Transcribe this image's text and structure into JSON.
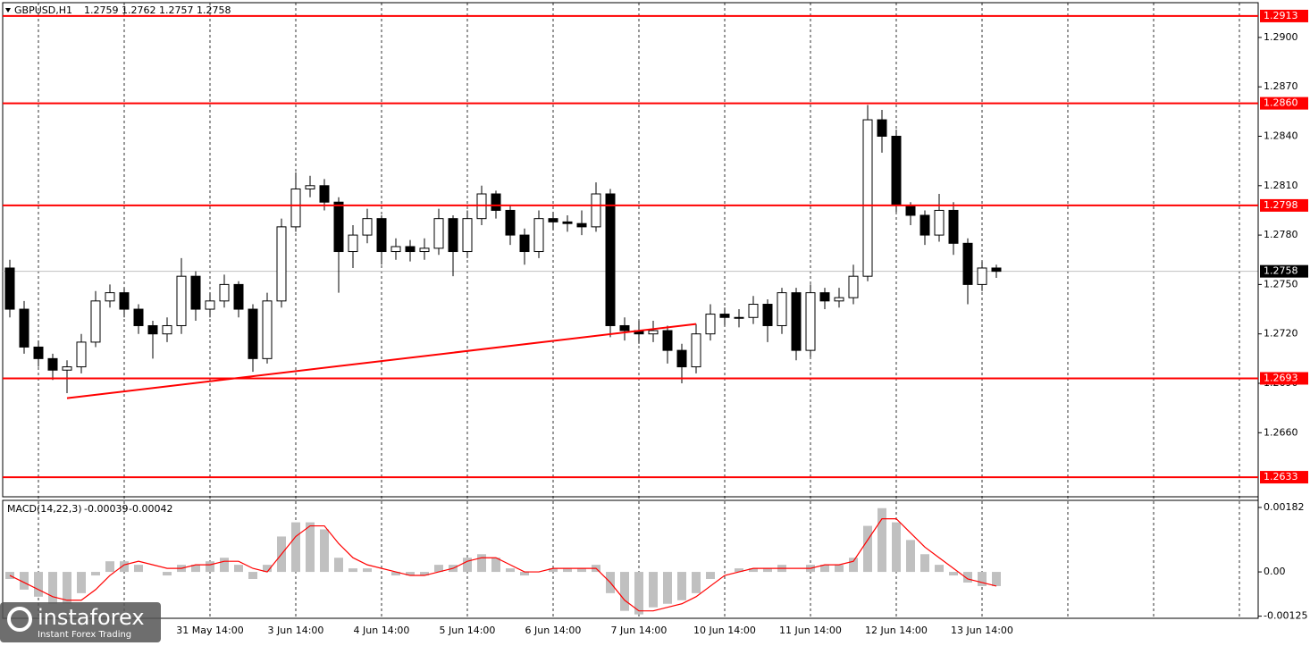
{
  "chart_data": [
    {
      "type": "candlestick",
      "symbol": "GBPUSD,H1",
      "header_values": [
        1.2759,
        1.2762,
        1.2757,
        1.2758
      ],
      "categories": [
        null,
        null,
        null,
        null,
        null,
        null,
        null,
        null,
        null,
        null,
        null,
        null,
        null,
        null,
        "31 May 14:00",
        null,
        null,
        null,
        null,
        null,
        "3 Jun 14:00",
        null,
        null,
        null,
        null,
        null,
        "4 Jun 14:00",
        null,
        null,
        null,
        null,
        null,
        "5 Jun 14:00",
        null,
        null,
        null,
        null,
        null,
        "6 Jun 14:00",
        null,
        null,
        null,
        null,
        null,
        "7 Jun 14:00",
        null,
        null,
        null,
        null,
        null,
        "10 Jun 14:00",
        null,
        null,
        null,
        null,
        null,
        "11 Jun 14:00",
        null,
        null,
        null,
        null,
        null,
        "12 Jun 14:00",
        null,
        null,
        null,
        null,
        null,
        "13 Jun 14:00",
        null
      ],
      "open": [
        1.276,
        1.2735,
        1.2712,
        1.2705,
        1.2698,
        1.27,
        1.2715,
        1.274,
        1.2745,
        1.2735,
        1.2725,
        1.272,
        1.2725,
        1.2755,
        1.2735,
        1.274,
        1.275,
        1.2735,
        1.2705,
        1.274,
        1.2785,
        1.2808,
        1.281,
        1.28,
        1.277,
        1.278,
        1.279,
        1.277,
        1.2773,
        1.277,
        1.2772,
        1.279,
        1.277,
        1.279,
        1.2805,
        1.2795,
        1.278,
        1.277,
        1.279,
        1.2788,
        1.2787,
        1.2785,
        1.2805,
        1.2725,
        1.2722,
        1.272,
        1.2722,
        1.271,
        1.27,
        1.272,
        1.2732,
        1.273,
        1.273,
        1.2738,
        1.2725,
        1.2745,
        1.271,
        1.2745,
        1.274,
        1.2742,
        1.2755,
        1.285,
        1.284,
        1.2798,
        1.2792,
        1.278,
        1.2795,
        1.2775,
        1.275,
        1.276
      ],
      "high": [
        1.2765,
        1.274,
        1.2716,
        1.2708,
        1.2704,
        1.272,
        1.2746,
        1.275,
        1.2748,
        1.2738,
        1.2728,
        1.273,
        1.2766,
        1.2758,
        1.2745,
        1.2756,
        1.2752,
        1.2738,
        1.2745,
        1.279,
        1.2818,
        1.2816,
        1.2814,
        1.2803,
        1.2786,
        1.2796,
        1.2792,
        1.2778,
        1.2777,
        1.2778,
        1.2796,
        1.2792,
        1.2795,
        1.281,
        1.2807,
        1.2798,
        1.2784,
        1.2795,
        1.2794,
        1.2792,
        1.2795,
        1.2812,
        1.2808,
        1.273,
        1.2728,
        1.2728,
        1.2725,
        1.2714,
        1.2726,
        1.2738,
        1.2736,
        1.2735,
        1.2743,
        1.2741,
        1.2748,
        1.2748,
        1.275,
        1.2748,
        1.2748,
        1.2762,
        1.2859,
        1.2856,
        1.2844,
        1.28,
        1.2795,
        1.2805,
        1.28,
        1.2778,
        1.2764,
        1.2762
      ],
      "low": [
        1.273,
        1.2708,
        1.27,
        1.2692,
        1.2684,
        1.2696,
        1.2712,
        1.2736,
        1.273,
        1.272,
        1.2705,
        1.2715,
        1.272,
        1.2728,
        1.273,
        1.2736,
        1.273,
        1.2697,
        1.2702,
        1.2736,
        1.2782,
        1.2803,
        1.2795,
        1.2745,
        1.276,
        1.2775,
        1.2762,
        1.2765,
        1.2764,
        1.2765,
        1.2768,
        1.2755,
        1.2766,
        1.2786,
        1.279,
        1.2774,
        1.2762,
        1.2766,
        1.2783,
        1.2782,
        1.278,
        1.2782,
        1.2718,
        1.2716,
        1.2714,
        1.2715,
        1.2702,
        1.269,
        1.2696,
        1.2716,
        1.2725,
        1.2724,
        1.2726,
        1.2715,
        1.272,
        1.2704,
        1.2706,
        1.2735,
        1.2736,
        1.2738,
        1.2752,
        1.283,
        1.2794,
        1.2786,
        1.2774,
        1.2776,
        1.2768,
        1.2738,
        1.2746,
        1.2754
      ],
      "close": [
        1.2735,
        1.2712,
        1.2705,
        1.2698,
        1.27,
        1.2715,
        1.274,
        1.2745,
        1.2735,
        1.2725,
        1.272,
        1.2725,
        1.2755,
        1.2735,
        1.274,
        1.275,
        1.2735,
        1.2705,
        1.274,
        1.2785,
        1.2808,
        1.281,
        1.28,
        1.277,
        1.278,
        1.279,
        1.277,
        1.2773,
        1.277,
        1.2772,
        1.279,
        1.277,
        1.279,
        1.2805,
        1.2795,
        1.278,
        1.277,
        1.279,
        1.2788,
        1.2787,
        1.2785,
        1.2805,
        1.2725,
        1.2722,
        1.272,
        1.2722,
        1.271,
        1.27,
        1.272,
        1.2732,
        1.273,
        1.273,
        1.2738,
        1.2725,
        1.2745,
        1.271,
        1.2745,
        1.274,
        1.2742,
        1.2755,
        1.285,
        1.284,
        1.2798,
        1.2792,
        1.278,
        1.2795,
        1.2775,
        1.275,
        1.276,
        1.2758
      ],
      "up_color": "#ffffff",
      "down_color": "#000000",
      "ylim": [
        1.26211,
        1.29211
      ],
      "yticks": [
        {
          "value": 1.266,
          "label": "1.2660"
        },
        {
          "value": 1.269,
          "label": "1.2690"
        },
        {
          "value": 1.272,
          "label": "1.2720"
        },
        {
          "value": 1.275,
          "label": "1.2750"
        },
        {
          "value": 1.278,
          "label": "1.2780"
        },
        {
          "value": 1.281,
          "label": "1.2810"
        },
        {
          "value": 1.284,
          "label": "1.2840"
        },
        {
          "value": 1.287,
          "label": "1.2870"
        },
        {
          "value": 1.29,
          "label": "1.2900"
        }
      ],
      "levels": [
        1.2913,
        {
          "value": 1.286,
          "label": "1.2860"
        },
        1.2798,
        1.2693,
        1.2633
      ],
      "level_color": "#ff0000",
      "current_price": 1.2758,
      "trendline": {
        "x": [
          4,
          48
        ],
        "values": [
          1.2681,
          1.2726
        ]
      },
      "grid": true
    },
    {
      "type": "macd",
      "label": "MACD(14,22,3)",
      "header_values": [
        -0.00039,
        -0.00042
      ],
      "histogram": [
        -0.0002,
        -0.0005,
        -0.0007,
        -0.0009,
        -0.0009,
        -0.0006,
        -0.0001,
        0.0003,
        0.0003,
        0.0002,
        0.0,
        -0.0001,
        0.0002,
        0.0002,
        0.0003,
        0.0004,
        0.0002,
        -0.0002,
        0.0002,
        0.001,
        0.0014,
        0.0014,
        0.0012,
        0.0004,
        0.0001,
        0.0001,
        0.0,
        -0.0001,
        -0.0001,
        -0.0001,
        0.0002,
        0.0002,
        0.0004,
        0.0005,
        0.0004,
        0.0001,
        -0.0001,
        0.0,
        0.0001,
        0.0001,
        0.0001,
        0.0002,
        -0.0006,
        -0.0011,
        -0.0012,
        -0.001,
        -0.0009,
        -0.0008,
        -0.0006,
        -0.0002,
        0.0,
        0.0001,
        0.0001,
        0.0001,
        0.0002,
        0.0,
        0.0002,
        0.0002,
        0.0002,
        0.0004,
        0.0013,
        0.0018,
        0.0014,
        0.0009,
        0.0005,
        0.0002,
        -0.0001,
        -0.0003,
        -0.0004,
        -0.0004
      ],
      "signal": [
        -0.0001,
        -0.0003,
        -0.0005,
        -0.0007,
        -0.0008,
        -0.0008,
        -0.0005,
        -0.0001,
        0.0002,
        0.0003,
        0.0002,
        0.0001,
        0.0001,
        0.0002,
        0.0002,
        0.0003,
        0.0003,
        0.0001,
        0.0,
        0.0005,
        0.001,
        0.0013,
        0.0013,
        0.0008,
        0.0004,
        0.0002,
        0.0001,
        0.0,
        -0.0001,
        -0.0001,
        0.0,
        0.0001,
        0.0003,
        0.0004,
        0.0004,
        0.0002,
        0.0,
        0.0,
        0.0001,
        0.0001,
        0.0001,
        0.0001,
        -0.0003,
        -0.0008,
        -0.0011,
        -0.0011,
        -0.001,
        -0.0009,
        -0.0007,
        -0.0004,
        -0.0001,
        0.0,
        0.0001,
        0.0001,
        0.0001,
        0.0001,
        0.0001,
        0.0002,
        0.0002,
        0.0003,
        0.0009,
        0.0015,
        0.0015,
        0.0011,
        0.0007,
        0.0004,
        0.0001,
        -0.0002,
        -0.0003,
        -0.0004
      ],
      "histogram_color": "#c0c0c0",
      "signal_color": "#ff0000",
      "ylim": [
        -0.00131,
        0.00202
      ],
      "yticks": [
        -0.00125,
        {
          "value": 0,
          "label": "0.00"
        },
        0.00182
      ]
    }
  ],
  "logo": {
    "name": "instaforex",
    "tagline": "Instant Forex Trading"
  }
}
